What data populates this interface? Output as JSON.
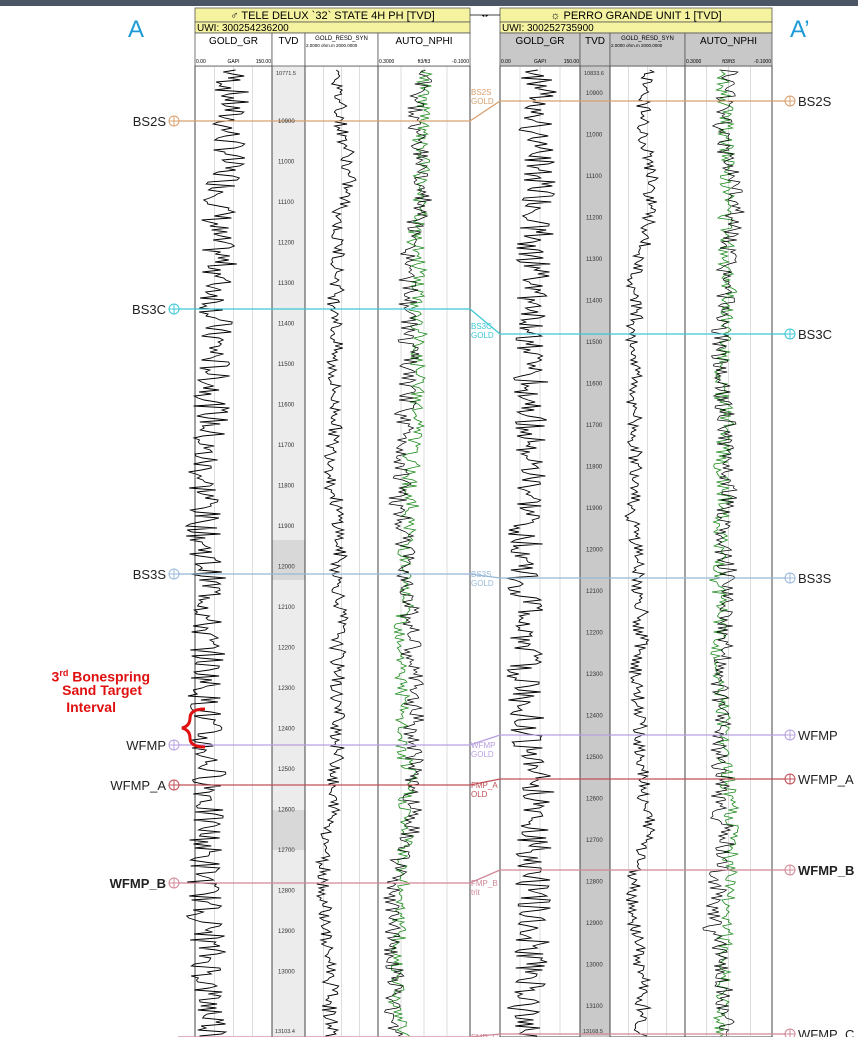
{
  "section": {
    "end_left": "A",
    "end_right": "A’"
  },
  "wells": [
    {
      "name": "TELE DELUX `32` STATE 4H PH [TVD]",
      "uwi": "UWI:  300254236200",
      "tracks": [
        "GOLD_GR",
        "TVD",
        "GOLD_RESD_SYN",
        "AUTO_NPHI"
      ],
      "gr_scale": [
        "0.00",
        "GAPI",
        "150.00"
      ],
      "res_scale": "2.0000 ohm.m 2000.0000",
      "nphi_scale": [
        "0.3000",
        "ft3/ft3",
        "-0.1000"
      ],
      "depth_top": "10771.5",
      "depth_bottom": "13103.4",
      "depth_ticks": [
        "10900",
        "11000",
        "11100",
        "11200",
        "11300",
        "11400",
        "11500",
        "11600",
        "11700",
        "11800",
        "11900",
        "12000",
        "12100",
        "12200",
        "12300",
        "12400",
        "12500",
        "12600",
        "12700",
        "12800",
        "12900",
        "13000"
      ]
    },
    {
      "name": "PERRO GRANDE UNIT 1 [TVD]",
      "uwi": "UWI:  300252735900",
      "tracks": [
        "GOLD_GR",
        "TVD",
        "GOLD_RESD_SYN",
        "AUTO_NPHI"
      ],
      "gr_scale": [
        "0.00",
        "GAPI",
        "150.00"
      ],
      "res_scale": "2.0000 ohm.m 2000.0000",
      "nphi_scale": [
        "0.3000",
        "ft3/ft3",
        "-0.1000"
      ],
      "depth_top": "10833.6",
      "depth_bottom": "13168.5",
      "depth_ticks": [
        "10900",
        "11000",
        "11100",
        "11200",
        "11300",
        "11400",
        "11500",
        "11600",
        "11700",
        "11800",
        "11900",
        "12000",
        "12100",
        "12200",
        "12300",
        "12400",
        "12500",
        "12600",
        "12700",
        "12800",
        "12900",
        "13000",
        "13100"
      ]
    }
  ],
  "gap_label": "",
  "tops": [
    {
      "name": "BS2S",
      "color": "#d8a070",
      "gap_label": [
        "BS2S",
        "GOLD"
      ],
      "bold": false
    },
    {
      "name": "BS3C",
      "color": "#3cc8d4",
      "gap_label": [
        "BS3C",
        "GOLD"
      ],
      "bold": false
    },
    {
      "name": "BS3S",
      "color": "#98b8d8",
      "gap_label": [
        "BS3S",
        "GOLD"
      ],
      "bold": false
    },
    {
      "name": "WFMP",
      "color": "#b8a0e0",
      "gap_label": [
        "WFMP",
        "GOLD"
      ],
      "bold": false
    },
    {
      "name": "WFMP_A",
      "color": "#c05058",
      "gap_label": [
        "FMP_A",
        "OLD"
      ],
      "bold": false
    },
    {
      "name": "WFMP_B",
      "color": "#d08898",
      "gap_label": [
        "FMP_B",
        "trit"
      ],
      "bold": true
    },
    {
      "name": "WFMP_C",
      "color": "#d08898",
      "gap_label": [
        "FMP_C"
      ],
      "bold": false
    }
  ],
  "right_tops": [
    "BS2S",
    "BS3C",
    "BS3S",
    "WFMP",
    "WFMP_A",
    "WFMP_B",
    "WFMP_C"
  ],
  "annotation": {
    "sup": "rd",
    "line1_rest": " Bonespring",
    "line1_num": "3",
    "line2": "Sand Target",
    "line3": "Interval"
  },
  "colors": {
    "header_yellow": "#f5f2a0",
    "header_gray": "#c8c8c8",
    "tvd_gray": "#d0d0d0",
    "nphi_green": "#1c8a1c",
    "ends_blue": "#1e9ad8",
    "annotation_red": "#e01010"
  }
}
